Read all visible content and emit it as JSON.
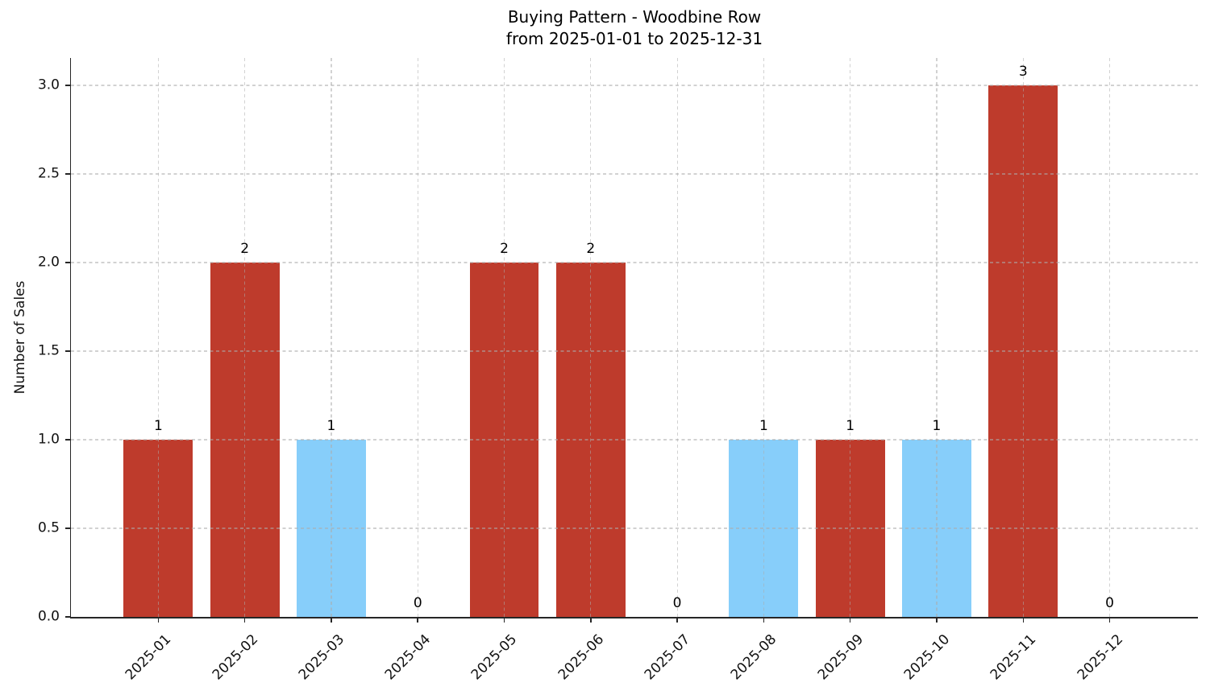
{
  "chart": {
    "title_line1": "Buying Pattern - Woodbine Row",
    "title_line2": "from 2025-01-01 to 2025-12-31",
    "ylabel": "Number of Sales"
  },
  "chart_data": {
    "type": "bar",
    "title": "Buying Pattern - Woodbine Row\nfrom 2025-01-01 to 2025-12-31",
    "xlabel": "",
    "ylabel": "Number of Sales",
    "categories": [
      "2025-01",
      "2025-02",
      "2025-03",
      "2025-04",
      "2025-05",
      "2025-06",
      "2025-07",
      "2025-08",
      "2025-09",
      "2025-10",
      "2025-11",
      "2025-12"
    ],
    "values": [
      1,
      2,
      1,
      0,
      2,
      2,
      0,
      1,
      1,
      1,
      3,
      0
    ],
    "bar_labels": [
      "1",
      "2",
      "1",
      "0",
      "2",
      "2",
      "0",
      "1",
      "1",
      "1",
      "3",
      "0"
    ],
    "bar_colors": [
      "#be3b2c",
      "#be3b2c",
      "#87cefa",
      null,
      "#be3b2c",
      "#be3b2c",
      null,
      "#87cefa",
      "#be3b2c",
      "#87cefa",
      "#be3b2c",
      null
    ],
    "yticks": [
      0.0,
      0.5,
      1.0,
      1.5,
      2.0,
      2.5,
      3.0
    ],
    "ytick_labels": [
      "0.0",
      "0.5",
      "1.0",
      "1.5",
      "2.0",
      "2.5",
      "3.0"
    ],
    "ylim": [
      0,
      3.155
    ],
    "xlim": [
      -1.01,
      12.02
    ],
    "bar_width_units": 0.8,
    "x_tick_rotation_deg": 45,
    "grid": true,
    "grid_style": "dashed",
    "grid_above_bars": true,
    "legend": false,
    "colors": {
      "red_bar": "#be3b2c",
      "blue_bar": "#87cefa",
      "grid": "#acacac",
      "axis": "#262626",
      "text": "#111111",
      "background": "#ffffff"
    }
  }
}
